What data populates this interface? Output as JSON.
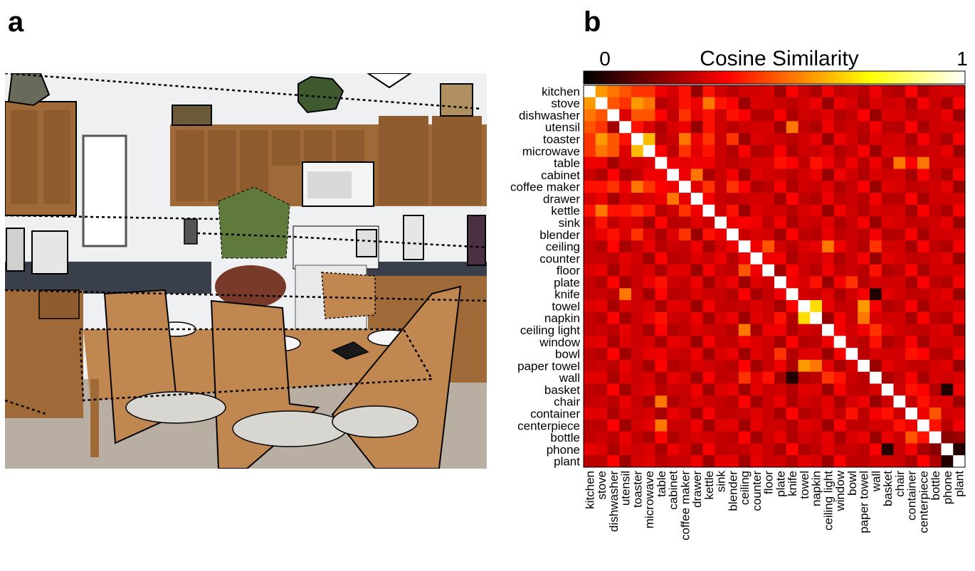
{
  "panels": {
    "a": "a",
    "b": "b"
  },
  "photo": {
    "description_icon": "kitchen-photo",
    "colors": {
      "wall": "#eef0f2",
      "cabinet": "#a06a38",
      "cabinet_dark": "#7d4f26",
      "floor": "#b8aea2",
      "counter": "#3a3f4c",
      "wood": "#c08850"
    }
  },
  "colorbar": {
    "title": "Cosine Similarity",
    "min_label": "0",
    "max_label": "1"
  },
  "chart_data": {
    "type": "heatmap",
    "title": "Cosine Similarity",
    "colormap": "hot",
    "vmin": 0,
    "vmax": 1,
    "labels": [
      "kitchen",
      "stove",
      "dishwasher",
      "utensil",
      "toaster",
      "microwave",
      "table",
      "cabinet",
      "coffee maker",
      "drawer",
      "kettle",
      "sink",
      "blender",
      "ceiling",
      "counter",
      "floor",
      "plate",
      "knife",
      "towel",
      "napkin",
      "ceiling light",
      "window",
      "bowl",
      "paper towel",
      "wall",
      "basket",
      "chair",
      "container",
      "centerpiece",
      "bottle",
      "phone",
      "plant"
    ],
    "base_value": 0.3,
    "diagonal": 1.0,
    "pairs": [
      [
        0,
        1,
        0.6
      ],
      [
        0,
        2,
        0.55
      ],
      [
        0,
        3,
        0.5
      ],
      [
        0,
        4,
        0.45
      ],
      [
        0,
        5,
        0.45
      ],
      [
        0,
        6,
        0.35
      ],
      [
        0,
        8,
        0.4
      ],
      [
        0,
        10,
        0.4
      ],
      [
        1,
        2,
        0.5
      ],
      [
        1,
        3,
        0.45
      ],
      [
        1,
        4,
        0.6
      ],
      [
        1,
        5,
        0.55
      ],
      [
        1,
        8,
        0.4
      ],
      [
        1,
        10,
        0.55
      ],
      [
        1,
        11,
        0.4
      ],
      [
        2,
        4,
        0.5
      ],
      [
        2,
        5,
        0.5
      ],
      [
        2,
        8,
        0.45
      ],
      [
        2,
        10,
        0.4
      ],
      [
        2,
        12,
        0.4
      ],
      [
        3,
        4,
        0.4
      ],
      [
        3,
        8,
        0.35
      ],
      [
        3,
        17,
        0.55
      ],
      [
        3,
        10,
        0.4
      ],
      [
        4,
        5,
        0.65
      ],
      [
        4,
        8,
        0.55
      ],
      [
        4,
        10,
        0.45
      ],
      [
        4,
        12,
        0.45
      ],
      [
        5,
        8,
        0.45
      ],
      [
        5,
        10,
        0.4
      ],
      [
        6,
        7,
        0.35
      ],
      [
        6,
        9,
        0.35
      ],
      [
        6,
        16,
        0.4
      ],
      [
        6,
        26,
        0.55
      ],
      [
        6,
        28,
        0.55
      ],
      [
        6,
        19,
        0.4
      ],
      [
        6,
        22,
        0.35
      ],
      [
        7,
        9,
        0.55
      ],
      [
        7,
        8,
        0.35
      ],
      [
        8,
        10,
        0.45
      ],
      [
        8,
        12,
        0.45
      ],
      [
        10,
        12,
        0.4
      ],
      [
        11,
        12,
        0.35
      ],
      [
        13,
        15,
        0.5
      ],
      [
        13,
        20,
        0.55
      ],
      [
        13,
        21,
        0.35
      ],
      [
        13,
        24,
        0.45
      ],
      [
        13,
        14,
        0.35
      ],
      [
        14,
        15,
        0.35
      ],
      [
        14,
        11,
        0.35
      ],
      [
        15,
        20,
        0.35
      ],
      [
        15,
        24,
        0.4
      ],
      [
        16,
        22,
        0.45
      ],
      [
        16,
        19,
        0.4
      ],
      [
        16,
        17,
        0.35
      ],
      [
        17,
        3,
        0.55
      ],
      [
        17,
        24,
        0.05
      ],
      [
        18,
        19,
        0.7
      ],
      [
        18,
        23,
        0.6
      ],
      [
        18,
        15,
        0.3
      ],
      [
        19,
        23,
        0.55
      ],
      [
        20,
        21,
        0.35
      ],
      [
        20,
        24,
        0.45
      ],
      [
        21,
        24,
        0.4
      ],
      [
        22,
        16,
        0.45
      ],
      [
        22,
        27,
        0.4
      ],
      [
        25,
        27,
        0.4
      ],
      [
        25,
        26,
        0.3
      ],
      [
        25,
        30,
        0.05
      ],
      [
        26,
        28,
        0.4
      ],
      [
        26,
        6,
        0.55
      ],
      [
        27,
        29,
        0.5
      ],
      [
        27,
        28,
        0.35
      ],
      [
        28,
        29,
        0.4
      ],
      [
        29,
        30,
        0.2
      ],
      [
        30,
        31,
        0.05
      ]
    ]
  }
}
